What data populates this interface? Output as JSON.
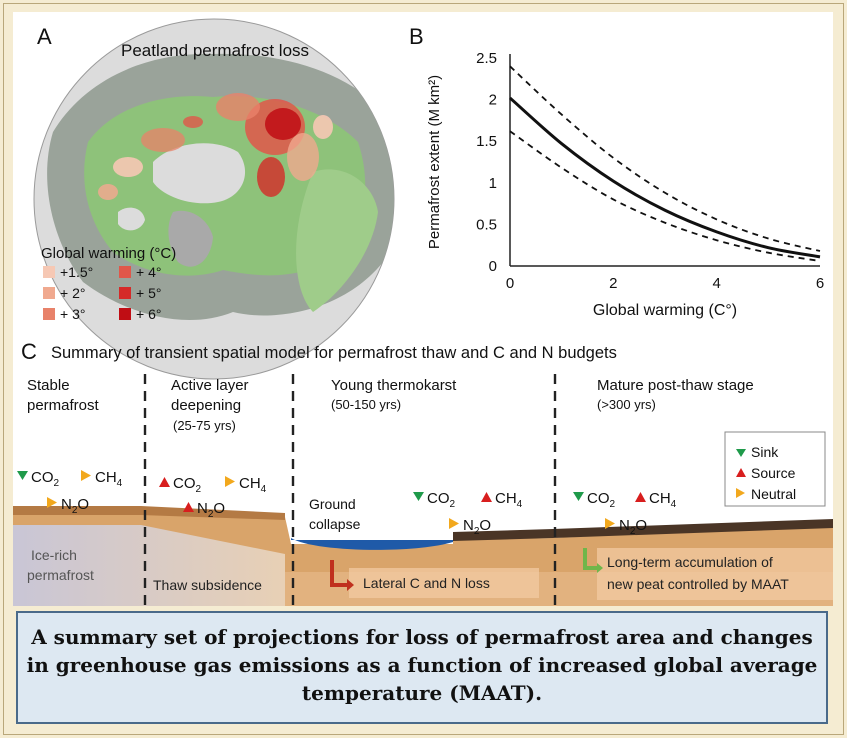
{
  "panel_a": {
    "letter": "A",
    "title": "Peatland permafrost loss",
    "legend_title": "Global warming (°C)",
    "legend_items": [
      {
        "label": "+1.5°",
        "color": "#f6c8b4"
      },
      {
        "label": "+ 2°",
        "color": "#f0a98f"
      },
      {
        "label": "+ 3°",
        "color": "#e8826a"
      },
      {
        "label": "+ 4°",
        "color": "#e0574a"
      },
      {
        "label": "+ 5°",
        "color": "#d52a28"
      },
      {
        "label": "+ 6°",
        "color": "#c00d14"
      }
    ]
  },
  "panel_b": {
    "letter": "B",
    "ylabel": "Permafrost extent (M km²)",
    "xlabel": "Global warming (C°)",
    "yticks": [
      "2.5",
      "2",
      "1.5",
      "1",
      "0.5",
      "0"
    ],
    "xticks": [
      "0",
      "2",
      "4",
      "6"
    ]
  },
  "chart_data": {
    "type": "line",
    "xlabel": "Global warming (C°)",
    "ylabel": "Permafrost extent (M km²)",
    "xlim": [
      0,
      6
    ],
    "ylim": [
      0,
      2.5
    ],
    "grid": false,
    "x": [
      0,
      1,
      2,
      3,
      4,
      5,
      6
    ],
    "series": [
      {
        "style": "solid",
        "values": [
          2.02,
          1.47,
          1.02,
          0.67,
          0.41,
          0.22,
          0.11
        ]
      },
      {
        "style": "dashed-upper",
        "values": [
          2.4,
          1.82,
          1.3,
          0.88,
          0.56,
          0.33,
          0.18
        ]
      },
      {
        "style": "dashed-lower",
        "values": [
          1.62,
          1.18,
          0.8,
          0.52,
          0.31,
          0.16,
          0.06
        ]
      }
    ]
  },
  "panel_c": {
    "letter": "C",
    "title": "Summary of transient spatial model for permafrost thaw and C and N budgets",
    "stages": [
      {
        "line1": "Stable",
        "line2": "permafrost",
        "years": ""
      },
      {
        "line1": "Active layer",
        "line2": "deepening",
        "years": "(25-75 yrs)"
      },
      {
        "line1": "Young thermokarst",
        "line2": "",
        "years": "(50-150 yrs)"
      },
      {
        "line1": "Mature post-thaw stage",
        "line2": "",
        "years": "(>300 yrs)"
      }
    ],
    "gases": {
      "co2": "CO",
      "ch4": "CH",
      "n2o": "N",
      "n2o_tail": "O",
      "sub2": "2",
      "sub4": "4"
    },
    "legend": {
      "sink": "Sink",
      "source": "Source",
      "neutral": "Neutral"
    },
    "labels": {
      "ice_rich_1": "Ice-rich",
      "ice_rich_2": "permafrost",
      "thaw_subsidence": "Thaw subsidence",
      "ground_collapse_1": "Ground",
      "ground_collapse_2": "collapse",
      "lateral_loss": "Lateral C and N loss",
      "accumulation_1": "Long-term accumulation of",
      "accumulation_2": "new peat controlled by MAAT"
    },
    "colors": {
      "sink": "#1f9a4a",
      "source": "#d81e1e",
      "neutral": "#f2a81d",
      "water": "#1f5aa8",
      "soil": "#d9a46a",
      "peat": "#4a3526"
    }
  },
  "caption": "A summary set of projections for loss of permafrost area and changes in greenhouse gas emissions as a function of increased global average temperature (MAAT)."
}
